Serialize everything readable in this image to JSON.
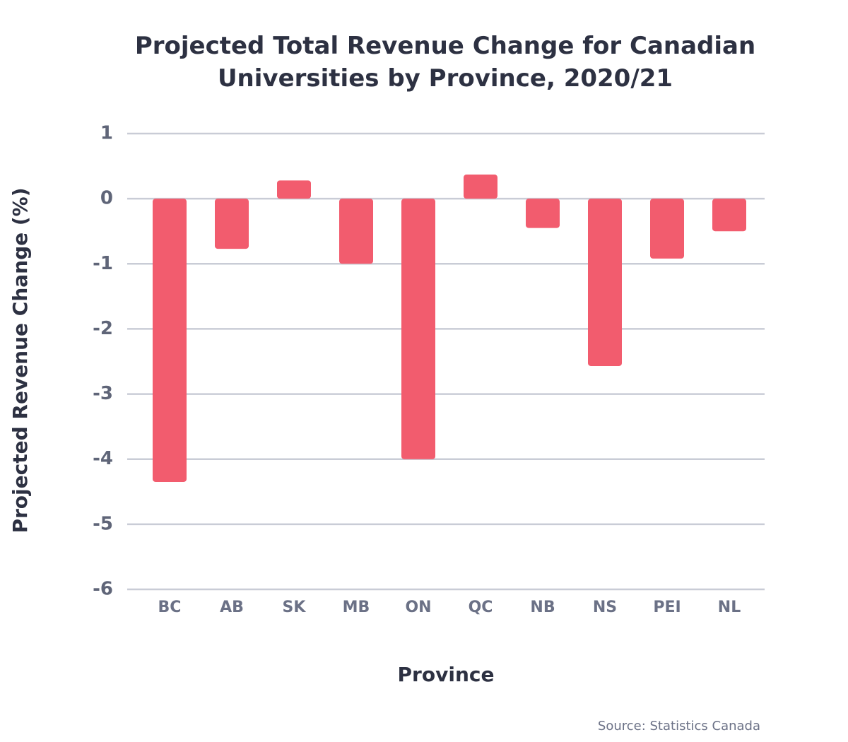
{
  "chart_data": {
    "type": "bar",
    "title": "Projected Total Revenue Change for Canadian Universities by Province, 2020/21",
    "x_label": "Province",
    "y_label": "Projected Revenue Change (%)",
    "source": "Source: Statistics Canada",
    "categories": [
      "BC",
      "AB",
      "SK",
      "MB",
      "ON",
      "QC",
      "NB",
      "NS",
      "PEI",
      "NL"
    ],
    "values": [
      -4.35,
      -0.77,
      0.28,
      -1.0,
      -4.0,
      0.37,
      -0.45,
      -2.57,
      -0.92,
      -0.5
    ],
    "color": "#f25c6e",
    "ylim": [
      -6,
      1
    ],
    "yticks": [
      -6,
      -5,
      -4,
      -3,
      -2,
      -1,
      0,
      1
    ],
    "grid": true
  }
}
